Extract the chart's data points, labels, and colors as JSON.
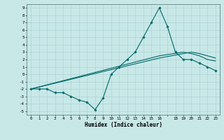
{
  "title": "",
  "xlabel": "Humidex (Indice chaleur)",
  "bg_color": "#c8e8e8",
  "grid_color": "#a8cece",
  "line_color": "#006868",
  "xlim": [
    -0.5,
    23.5
  ],
  "ylim": [
    -5.5,
    9.5
  ],
  "line1_x": [
    0,
    1,
    2,
    3,
    4,
    5,
    6,
    7,
    8,
    9,
    10,
    11,
    12,
    13,
    14,
    15,
    16,
    17,
    18,
    19,
    20,
    21,
    22,
    23
  ],
  "line1_y": [
    -2,
    -2,
    -2,
    -2.5,
    -2.5,
    -3,
    -3.5,
    -3.8,
    -4.8,
    -3.2,
    0,
    1,
    2,
    3,
    5,
    7,
    9,
    6.5,
    3,
    2,
    2,
    1.5,
    1,
    0.5
  ],
  "line2_x": [
    0,
    16,
    19,
    20,
    21,
    22,
    23
  ],
  "line2_y": [
    -2,
    2.5,
    3.0,
    2.8,
    2.5,
    2.0,
    1.8
  ],
  "line3_x": [
    0,
    16,
    19,
    20,
    21,
    22,
    23
  ],
  "line3_y": [
    -2,
    2.2,
    2.8,
    3.0,
    2.8,
    2.5,
    2.2
  ],
  "xtick_labels": [
    "0",
    "1",
    "2",
    "3",
    "4",
    "5",
    "6",
    "7",
    "8",
    "9",
    "10",
    "11",
    "12",
    "13",
    "14",
    "15",
    "16",
    "",
    "18",
    "19",
    "20",
    "21",
    "22",
    "23"
  ],
  "ytick_labels": [
    "9",
    "8",
    "7",
    "6",
    "5",
    "4",
    "3",
    "2",
    "1",
    "0",
    "-1",
    "-2",
    "-3",
    "-4",
    "-5"
  ],
  "ytick_vals": [
    9,
    8,
    7,
    6,
    5,
    4,
    3,
    2,
    1,
    0,
    -1,
    -2,
    -3,
    -4,
    -5
  ],
  "xtick_vals": [
    0,
    1,
    2,
    3,
    4,
    5,
    6,
    7,
    8,
    9,
    10,
    11,
    12,
    13,
    14,
    15,
    16,
    17,
    18,
    19,
    20,
    21,
    22,
    23
  ]
}
